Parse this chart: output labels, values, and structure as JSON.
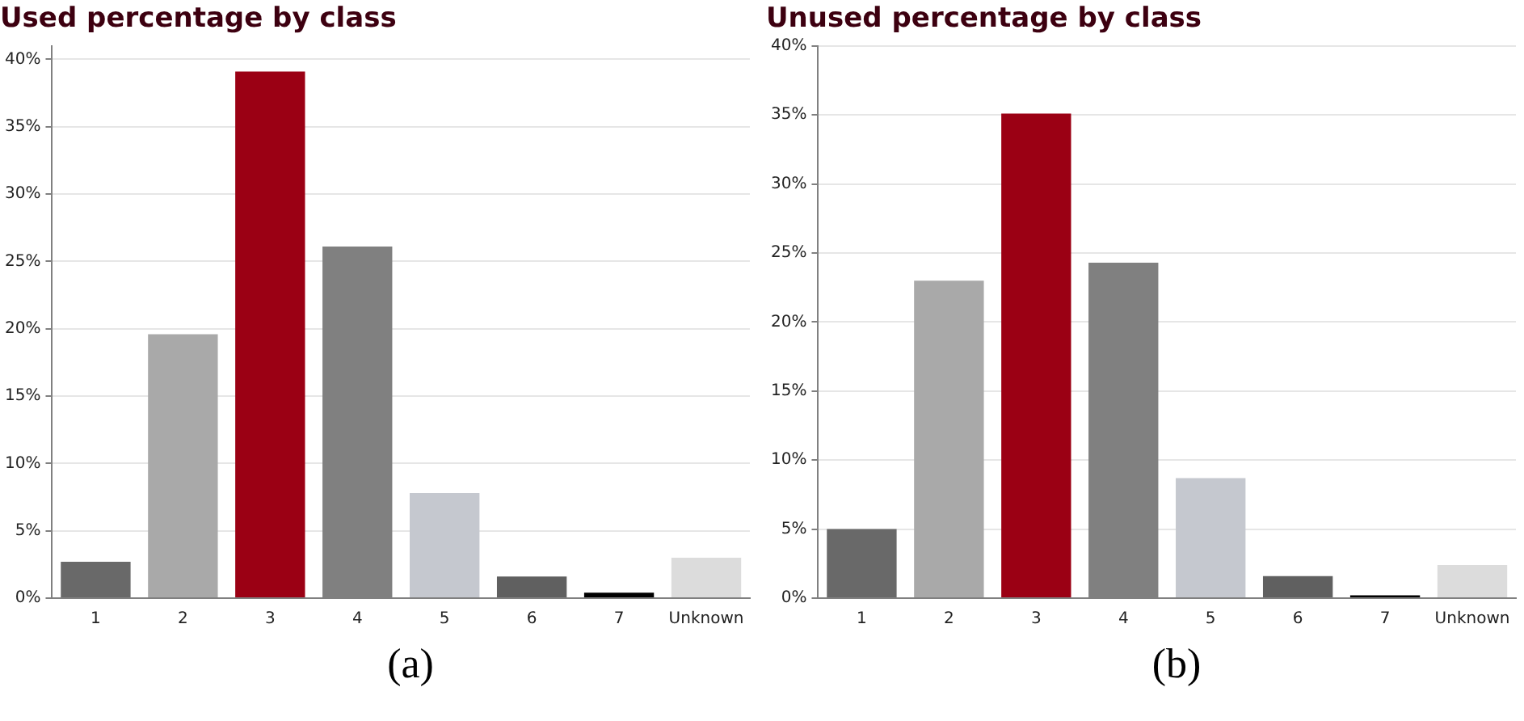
{
  "chart_data": [
    {
      "type": "bar",
      "title": "Used percentage by class",
      "categories": [
        "1",
        "2",
        "3",
        "4",
        "5",
        "6",
        "7",
        "Unknown"
      ],
      "values": [
        2.7,
        19.6,
        39.1,
        26.1,
        7.8,
        1.6,
        0.4,
        3.0
      ],
      "colors": [
        "#696969",
        "#a9a9a9",
        "#9b0014",
        "#808080",
        "#c5c8cf",
        "#606060",
        "#000000",
        "#dcdcdc"
      ],
      "ylim": [
        0,
        41
      ],
      "yticks": [
        {
          "value": 0,
          "label": "0%"
        },
        {
          "value": 5,
          "label": "5%"
        },
        {
          "value": 10,
          "label": "10%"
        },
        {
          "value": 15,
          "label": "15%"
        },
        {
          "value": 20,
          "label": "20%"
        },
        {
          "value": 25,
          "label": "25%"
        },
        {
          "value": 30,
          "label": "30%"
        },
        {
          "value": 35,
          "label": "35%"
        },
        {
          "value": 40,
          "label": "40%"
        }
      ],
      "grid": "y",
      "annotations": [
        "(a)"
      ]
    },
    {
      "type": "bar",
      "title": "Unused percentage by class",
      "categories": [
        "1",
        "2",
        "3",
        "4",
        "5",
        "6",
        "7",
        "Unknown"
      ],
      "values": [
        5.0,
        23.0,
        35.1,
        24.3,
        8.7,
        1.6,
        0.2,
        2.4
      ],
      "colors": [
        "#696969",
        "#a9a9a9",
        "#9b0014",
        "#808080",
        "#c5c8cf",
        "#606060",
        "#000000",
        "#dcdcdc"
      ],
      "ylim": [
        0,
        40
      ],
      "yticks": [
        {
          "value": 0,
          "label": "0%"
        },
        {
          "value": 5,
          "label": "5%"
        },
        {
          "value": 10,
          "label": "10%"
        },
        {
          "value": 15,
          "label": "15%"
        },
        {
          "value": 20,
          "label": "20%"
        },
        {
          "value": 25,
          "label": "25%"
        },
        {
          "value": 30,
          "label": "30%"
        },
        {
          "value": 35,
          "label": "35%"
        },
        {
          "value": 40,
          "label": "40%"
        }
      ],
      "grid": "y",
      "annotations": [
        "(b)"
      ]
    }
  ]
}
